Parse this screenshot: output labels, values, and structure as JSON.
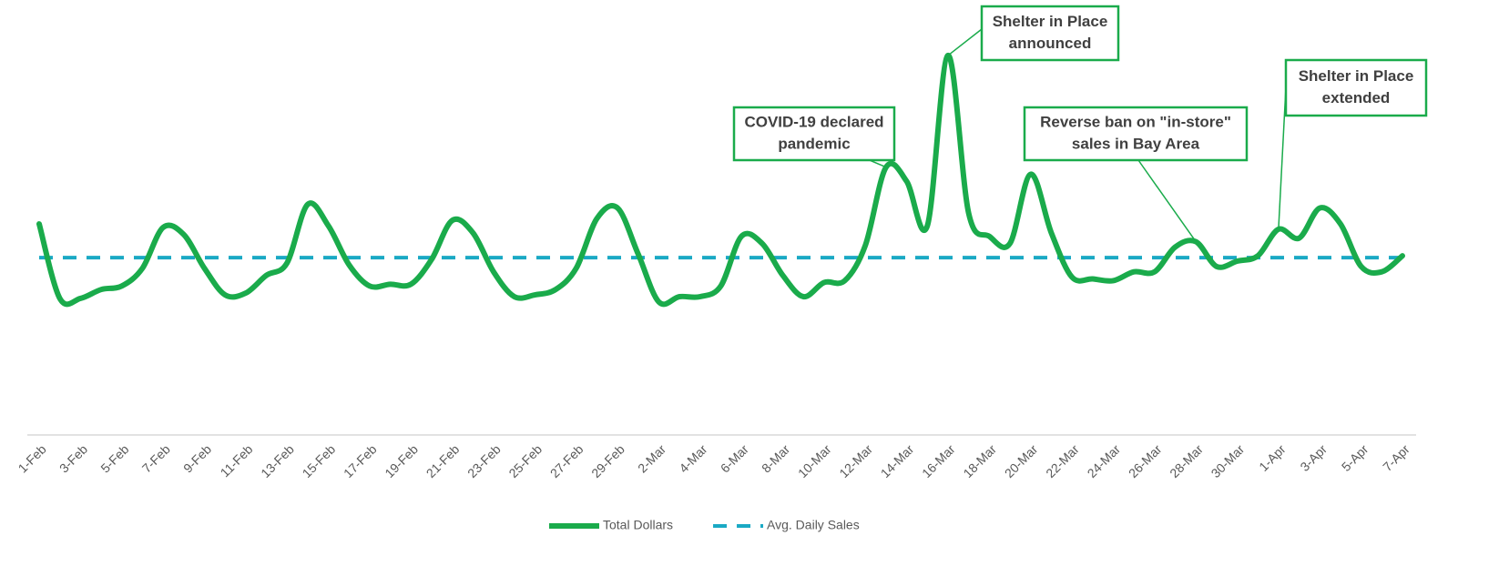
{
  "chart_data": {
    "type": "line",
    "categories": [
      "1-Feb",
      null,
      "3-Feb",
      null,
      "5-Feb",
      null,
      "7-Feb",
      null,
      "9-Feb",
      null,
      "11-Feb",
      null,
      "13-Feb",
      null,
      "15-Feb",
      null,
      "17-Feb",
      null,
      "19-Feb",
      null,
      "21-Feb",
      null,
      "23-Feb",
      null,
      "25-Feb",
      null,
      "27-Feb",
      null,
      "29-Feb",
      null,
      "2-Mar",
      null,
      "4-Mar",
      null,
      "6-Mar",
      null,
      "8-Mar",
      null,
      "10-Mar",
      null,
      "12-Mar",
      null,
      "14-Mar",
      null,
      "16-Mar",
      null,
      "18-Mar",
      null,
      "20-Mar",
      null,
      "22-Mar",
      null,
      "24-Mar",
      null,
      "26-Mar",
      null,
      "28-Mar",
      null,
      "30-Mar",
      null,
      "1-Apr",
      null,
      "3-Apr",
      null,
      "5-Apr",
      null,
      "7-Apr"
    ],
    "series": [
      {
        "name": "Total Dollars",
        "color": "#1aab4b",
        "values": [
          119,
          77,
          77,
          82,
          84,
          94,
          117,
          113,
          94,
          79,
          80,
          90,
          97,
          130,
          118,
          96,
          84,
          85,
          85,
          99,
          121,
          114,
          92,
          78,
          79,
          82,
          94,
          122,
          128,
          102,
          75,
          78,
          78,
          84,
          112,
          108,
          90,
          78,
          86,
          87,
          107,
          151,
          143,
          118,
          214,
          125,
          112,
          108,
          147,
          114,
          89,
          88,
          87,
          92,
          92,
          106,
          109,
          95,
          98,
          101,
          116,
          111,
          128,
          119,
          95,
          92,
          101
        ]
      },
      {
        "name": "Avg. Daily Sales",
        "color": "#1aa9c4",
        "dashed": true,
        "values": [
          100,
          100,
          100,
          100,
          100,
          100,
          100,
          100,
          100,
          100,
          100,
          100,
          100,
          100,
          100,
          100,
          100,
          100,
          100,
          100,
          100,
          100,
          100,
          100,
          100,
          100,
          100,
          100,
          100,
          100,
          100,
          100,
          100,
          100,
          100,
          100,
          100,
          100,
          100,
          100,
          100,
          100,
          100,
          100,
          100,
          100,
          100,
          100,
          100,
          100,
          100,
          100,
          100,
          100,
          100,
          100,
          100,
          100,
          100,
          100,
          100,
          100,
          100,
          100,
          100,
          100,
          100
        ]
      }
    ],
    "ylim": [
      0,
      235
    ],
    "annotations": [
      {
        "lines": [
          "COVID-19 declared",
          "pandemic"
        ]
      },
      {
        "lines": [
          "Shelter in Place",
          "announced"
        ]
      },
      {
        "lines": [
          "Reverse ban on \"in-store\"",
          "sales in Bay Area"
        ]
      },
      {
        "lines": [
          "Shelter in Place",
          "extended"
        ]
      }
    ]
  }
}
